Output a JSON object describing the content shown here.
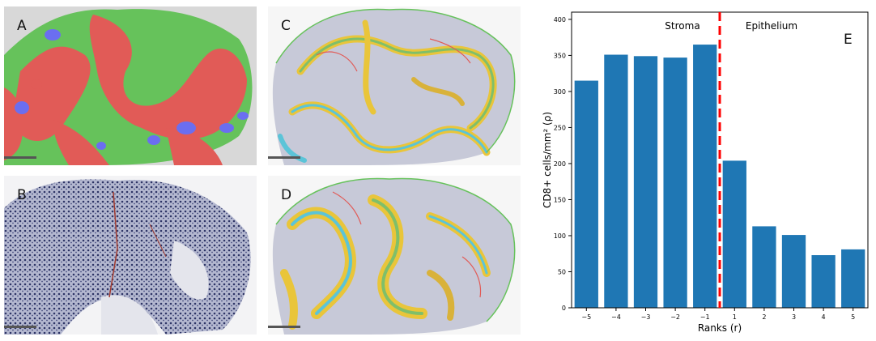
{
  "panels": {
    "a": {
      "label": "A"
    },
    "b": {
      "label": "B"
    },
    "c": {
      "label": "C"
    },
    "d": {
      "label": "D"
    }
  },
  "colors": {
    "epithelium_red": "#e15b57",
    "stroma_green": "#66c25b",
    "blue_patch": "#6b6ef0",
    "nuclei": "#2e3566",
    "bar": "#1f77b4",
    "divider": "#ff0000"
  },
  "chart_data": {
    "type": "bar",
    "panel_label": "E",
    "categories": [
      "−5",
      "−4",
      "−3",
      "−2",
      "−1",
      "1",
      "2",
      "3",
      "4",
      "5"
    ],
    "values": [
      315,
      351,
      349,
      347,
      365,
      204,
      113,
      101,
      73,
      81
    ],
    "xlabel": "Ranks (r)",
    "ylabel": "CD8+ cells/mm² (ρ)",
    "ylim": [
      0,
      410
    ],
    "yticks": [
      0,
      50,
      100,
      150,
      200,
      250,
      300,
      350,
      400
    ],
    "region_labels": {
      "left": "Stroma",
      "right": "Epithelium"
    },
    "divider": "red dashed vertical line between −1 and 1",
    "grid": false
  }
}
